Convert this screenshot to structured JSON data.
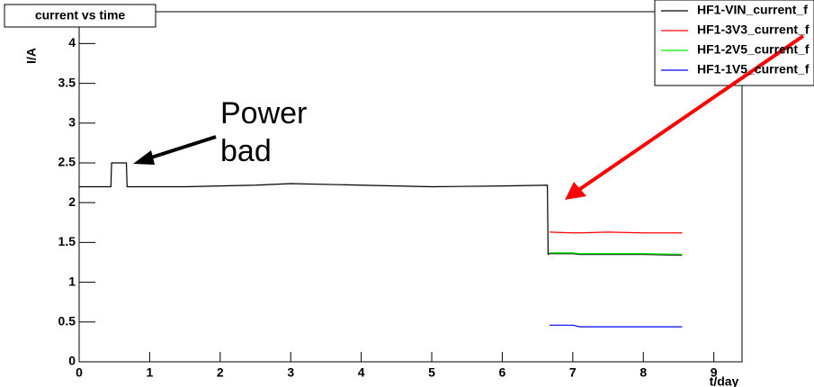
{
  "chart_data": {
    "type": "line",
    "title": "current vs time",
    "ylabel": "I/A",
    "xlabel": "t/day",
    "annotation": [
      "Power",
      "bad"
    ],
    "x": [
      0,
      0.45,
      0.46,
      0.67,
      0.68,
      1.5,
      2.5,
      3,
      4,
      5,
      6,
      6.64,
      6.65,
      6.67,
      7,
      7.1,
      7.5,
      8,
      8.55
    ],
    "series": [
      {
        "name": "HF1-VIN_current_f",
        "color": "#000000",
        "values": [
          2.2,
          2.2,
          2.5,
          2.5,
          2.2,
          2.2,
          2.22,
          2.24,
          2.22,
          2.2,
          2.21,
          2.22,
          1.35,
          1.36,
          1.36,
          1.35,
          1.35,
          1.35,
          1.34
        ]
      },
      {
        "name": "HF1-3V3_current_f",
        "color": "#ff0000",
        "values": [
          null,
          null,
          null,
          null,
          null,
          null,
          null,
          null,
          null,
          null,
          null,
          null,
          null,
          1.63,
          1.62,
          1.62,
          1.63,
          1.62,
          1.62
        ]
      },
      {
        "name": "HF1-2V5_current_f",
        "color": "#00ff00",
        "values": [
          null,
          null,
          null,
          null,
          null,
          null,
          null,
          null,
          null,
          null,
          null,
          null,
          null,
          1.37,
          1.37,
          1.36,
          1.36,
          1.36,
          1.35
        ]
      },
      {
        "name": "HF1-1V5_current_f",
        "color": "#0000ff",
        "values": [
          null,
          null,
          null,
          null,
          null,
          null,
          null,
          null,
          null,
          null,
          null,
          null,
          null,
          0.46,
          0.46,
          0.44,
          0.44,
          0.44,
          0.44
        ]
      }
    ],
    "xlim": [
      0,
      9.4
    ],
    "xticks": [
      0,
      1,
      2,
      3,
      4,
      5,
      6,
      7,
      8,
      9
    ],
    "ylim": [
      0,
      4.4
    ],
    "yticks": [
      0,
      0.5,
      1,
      1.5,
      2,
      2.5,
      3,
      3.5,
      4
    ]
  }
}
